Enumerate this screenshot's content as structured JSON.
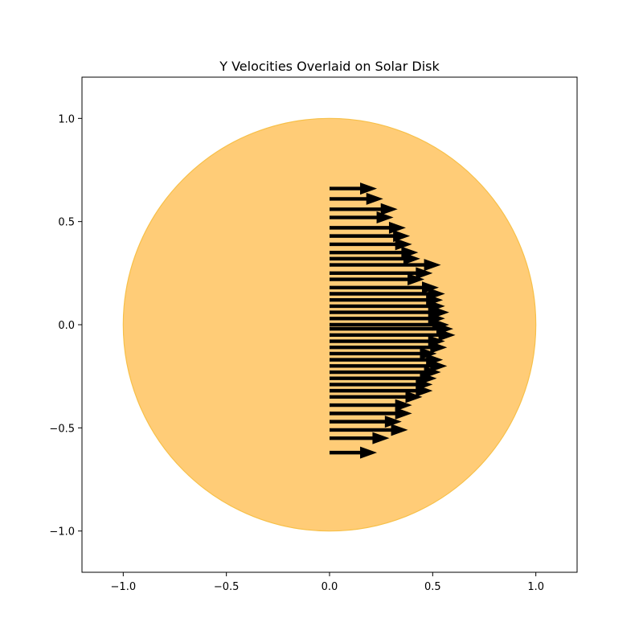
{
  "chart_data": {
    "type": "quiver",
    "title": "Y Velocities Overlaid on Solar Disk",
    "xlabel": "",
    "ylabel": "",
    "xlim": [
      -1.2,
      1.2
    ],
    "ylim": [
      -1.2,
      1.2
    ],
    "xticks": [
      -1.0,
      -0.5,
      0.0,
      0.5,
      1.0
    ],
    "yticks": [
      -1.0,
      -0.5,
      0.0,
      0.5,
      1.0
    ],
    "xtick_labels": [
      "−1.0",
      "−0.5",
      "0.0",
      "0.5",
      "1.0"
    ],
    "ytick_labels": [
      "−1.0",
      "−0.5",
      "0.0",
      "0.5",
      "1.0"
    ],
    "grid": false,
    "disk": {
      "center": [
        0,
        0
      ],
      "radius": 1.0,
      "fill": "#ffcc77",
      "edge": "#f7c049"
    },
    "arrow_color": "#000000",
    "arrows": [
      {
        "x": 0,
        "y": 0.66,
        "u": 0.23
      },
      {
        "x": 0,
        "y": 0.61,
        "u": 0.26
      },
      {
        "x": 0,
        "y": 0.56,
        "u": 0.33
      },
      {
        "x": 0,
        "y": 0.52,
        "u": 0.31
      },
      {
        "x": 0,
        "y": 0.47,
        "u": 0.37
      },
      {
        "x": 0,
        "y": 0.43,
        "u": 0.39
      },
      {
        "x": 0,
        "y": 0.39,
        "u": 0.4
      },
      {
        "x": 0,
        "y": 0.35,
        "u": 0.43
      },
      {
        "x": 0,
        "y": 0.32,
        "u": 0.44
      },
      {
        "x": 0,
        "y": 0.29,
        "u": 0.54
      },
      {
        "x": 0,
        "y": 0.25,
        "u": 0.5
      },
      {
        "x": 0,
        "y": 0.22,
        "u": 0.46
      },
      {
        "x": 0,
        "y": 0.18,
        "u": 0.53
      },
      {
        "x": 0,
        "y": 0.15,
        "u": 0.56
      },
      {
        "x": 0,
        "y": 0.12,
        "u": 0.55
      },
      {
        "x": 0,
        "y": 0.09,
        "u": 0.56
      },
      {
        "x": 0,
        "y": 0.06,
        "u": 0.58
      },
      {
        "x": 0,
        "y": 0.03,
        "u": 0.56
      },
      {
        "x": 0,
        "y": 0.0,
        "u": 0.58
      },
      {
        "x": 0,
        "y": -0.02,
        "u": 0.6
      },
      {
        "x": 0,
        "y": -0.05,
        "u": 0.61
      },
      {
        "x": 0,
        "y": -0.08,
        "u": 0.56
      },
      {
        "x": 0,
        "y": -0.11,
        "u": 0.57
      },
      {
        "x": 0,
        "y": -0.14,
        "u": 0.52
      },
      {
        "x": 0,
        "y": -0.17,
        "u": 0.55
      },
      {
        "x": 0,
        "y": -0.2,
        "u": 0.57
      },
      {
        "x": 0,
        "y": -0.23,
        "u": 0.54
      },
      {
        "x": 0,
        "y": -0.26,
        "u": 0.52
      },
      {
        "x": 0,
        "y": -0.29,
        "u": 0.5
      },
      {
        "x": 0,
        "y": -0.32,
        "u": 0.5
      },
      {
        "x": 0,
        "y": -0.35,
        "u": 0.45
      },
      {
        "x": 0,
        "y": -0.39,
        "u": 0.4
      },
      {
        "x": 0,
        "y": -0.43,
        "u": 0.4
      },
      {
        "x": 0,
        "y": -0.47,
        "u": 0.35
      },
      {
        "x": 0,
        "y": -0.51,
        "u": 0.38
      },
      {
        "x": 0,
        "y": -0.55,
        "u": 0.29
      },
      {
        "x": 0,
        "y": -0.62,
        "u": 0.23
      }
    ]
  }
}
